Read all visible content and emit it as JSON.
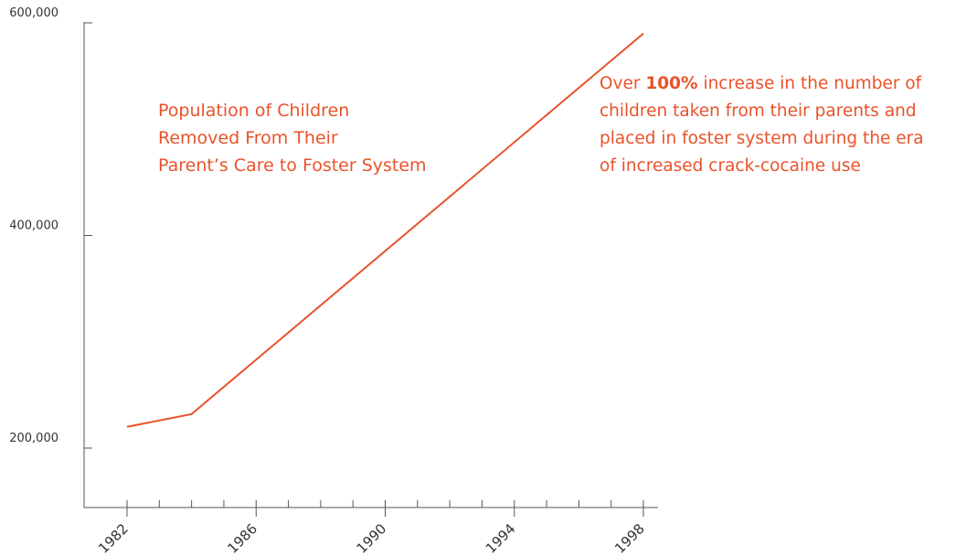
{
  "chart_data": {
    "type": "line",
    "title_lines": [
      "Population of Children",
      "Removed From Their",
      "Parent’s Care to Foster System"
    ],
    "x": [
      1982,
      1984,
      1998
    ],
    "series": [
      {
        "values": [
          220000,
          232000,
          590000
        ]
      }
    ],
    "ylim": [
      150000,
      600000
    ],
    "xlim": [
      1981,
      1998.5
    ],
    "y_ticks": [
      {
        "value": 600000,
        "label": "600,000"
      },
      {
        "value": 400000,
        "label": "400,000"
      },
      {
        "value": 200000,
        "label": "200,000"
      }
    ],
    "x_ticks": [
      {
        "value": 1982,
        "label": "1982"
      },
      {
        "value": 1986,
        "label": "1986"
      },
      {
        "value": 1990,
        "label": "1990"
      },
      {
        "value": 1994,
        "label": "1994"
      },
      {
        "value": 1998,
        "label": "1998"
      }
    ],
    "x_minor_ticks": [
      1983,
      1984,
      1985,
      1987,
      1988,
      1989,
      1991,
      1992,
      1993,
      1995,
      1996,
      1997
    ],
    "grid": false,
    "legend": "none",
    "annotation": {
      "line1_prefix": "Over",
      "line1_bold": "100%",
      "line1_suffix": "increase in the number of",
      "line2": "children taken from their parents and",
      "line3": "placed in foster system during the era",
      "line4": "of increased crack-cocaine use"
    },
    "colors": {
      "line": "#e8532b",
      "axis": "#555555",
      "text_accent": "#e8532b"
    }
  }
}
